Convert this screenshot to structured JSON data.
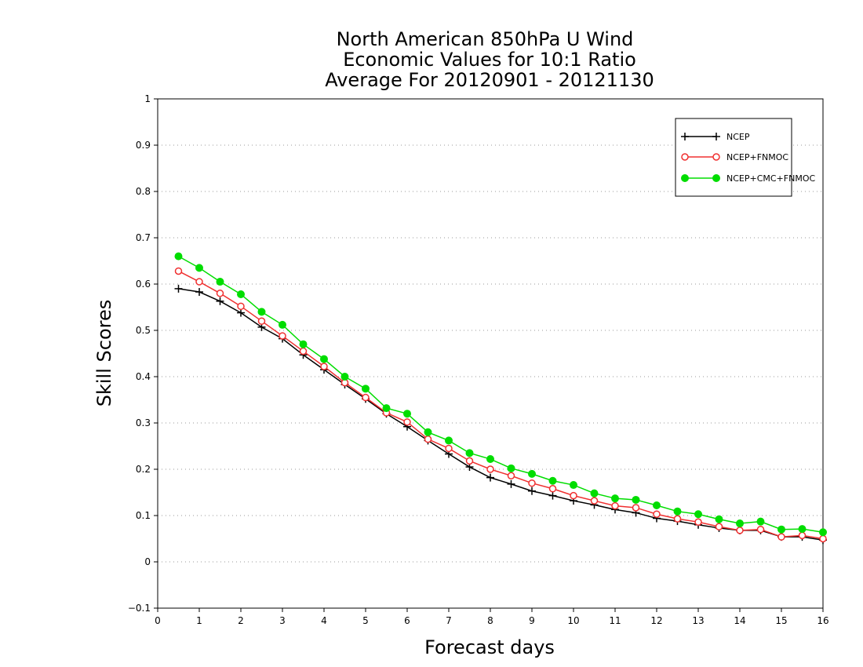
{
  "chart_data": {
    "type": "line",
    "title": [
      "North American 850hPa U Wind",
      "Economic Values for 10:1 Ratio",
      "Average For 20120901 - 20121130"
    ],
    "xlabel": "Forecast days",
    "ylabel": "Skill Scores",
    "xlim": [
      0,
      16
    ],
    "ylim": [
      -0.1,
      1
    ],
    "xticks": [
      "0",
      "1",
      "2",
      "3",
      "4",
      "5",
      "6",
      "7",
      "8",
      "9",
      "10",
      "11",
      "12",
      "13",
      "14",
      "15",
      "16"
    ],
    "yticks": [
      "−0.1",
      "0",
      "0.1",
      "0.2",
      "0.3",
      "0.4",
      "0.5",
      "0.6",
      "0.7",
      "0.8",
      "0.9",
      "1"
    ],
    "grid": "horizontal dotted",
    "legend_position": "top-right",
    "x": [
      0.5,
      1,
      1.5,
      2,
      2.5,
      3,
      3.5,
      4,
      4.5,
      5,
      5.5,
      6,
      6.5,
      7,
      7.5,
      8,
      8.5,
      9,
      9.5,
      10,
      10.5,
      11,
      11.5,
      12,
      12.5,
      13,
      13.5,
      14,
      14.5,
      15,
      15.5,
      16
    ],
    "series": [
      {
        "name": "NCEP",
        "color": "#000000",
        "marker": "plus",
        "values": [
          0.59,
          0.583,
          0.563,
          0.538,
          0.507,
          0.482,
          0.447,
          0.415,
          0.383,
          0.352,
          0.32,
          0.292,
          0.262,
          0.233,
          0.205,
          0.182,
          0.168,
          0.153,
          0.143,
          0.132,
          0.123,
          0.113,
          0.106,
          0.094,
          0.088,
          0.08,
          0.073,
          0.068,
          0.068,
          0.054,
          0.054,
          0.047
        ]
      },
      {
        "name": "NCEP+FNMOC",
        "color": "#f03030",
        "marker": "open-circle",
        "values": [
          0.628,
          0.605,
          0.58,
          0.552,
          0.52,
          0.488,
          0.455,
          0.422,
          0.387,
          0.355,
          0.322,
          0.302,
          0.265,
          0.245,
          0.218,
          0.2,
          0.186,
          0.17,
          0.158,
          0.143,
          0.132,
          0.121,
          0.117,
          0.103,
          0.093,
          0.086,
          0.076,
          0.068,
          0.07,
          0.054,
          0.057,
          0.05
        ]
      },
      {
        "name": "NCEP+CMC+FNMOC",
        "color": "#00dd00",
        "marker": "filled-circle",
        "values": [
          0.66,
          0.635,
          0.605,
          0.578,
          0.54,
          0.512,
          0.47,
          0.438,
          0.4,
          0.374,
          0.332,
          0.32,
          0.28,
          0.262,
          0.235,
          0.222,
          0.202,
          0.19,
          0.175,
          0.166,
          0.148,
          0.137,
          0.134,
          0.122,
          0.109,
          0.103,
          0.092,
          0.083,
          0.087,
          0.07,
          0.071,
          0.064
        ]
      }
    ]
  }
}
